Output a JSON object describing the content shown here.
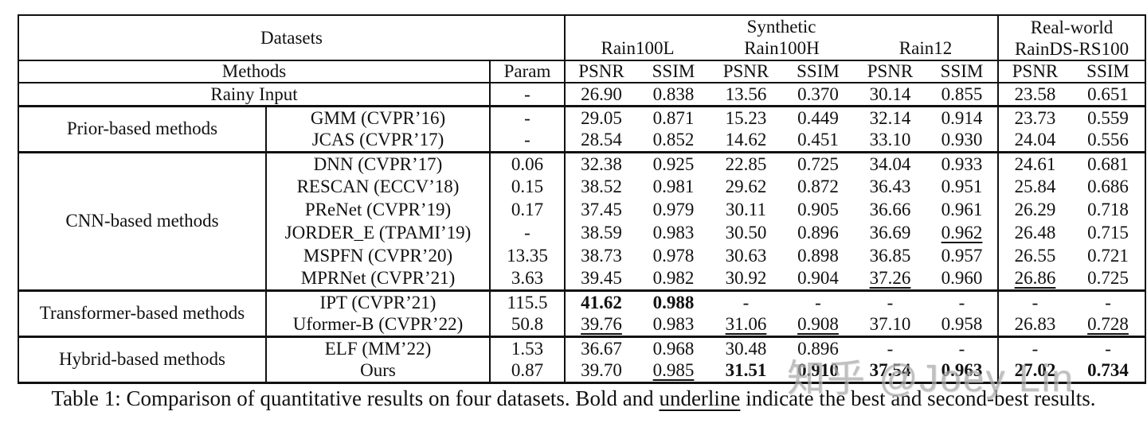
{
  "colors": {
    "text": "#111111",
    "rule": "#111111",
    "watermark": "#a9a9a9",
    "background": "#ffffff"
  },
  "table": {
    "header": {
      "datasets_label": "Datasets",
      "methods_label": "Methods",
      "param_label": "Param",
      "synthetic_label": "Synthetic",
      "realworld_line1": "Real-world",
      "realworld_line2": "RainDS-RS100",
      "dataset_names": [
        "Rain100L",
        "Rain100H",
        "Rain12"
      ],
      "metrics": [
        "PSNR",
        "SSIM",
        "PSNR",
        "SSIM",
        "PSNR",
        "SSIM",
        "PSNR",
        "SSIM"
      ]
    },
    "value_style_legend": {
      "n": "normal",
      "b": "bold (best)",
      "u": "underline (second-best)"
    },
    "rows": [
      {
        "group": null,
        "span_method": true,
        "method": "Rainy Input",
        "param": "-",
        "sep_after": "thick",
        "values": [
          [
            "26.90",
            "n"
          ],
          [
            "0.838",
            "n"
          ],
          [
            "13.56",
            "n"
          ],
          [
            "0.370",
            "n"
          ],
          [
            "30.14",
            "n"
          ],
          [
            "0.855",
            "n"
          ],
          [
            "23.58",
            "n"
          ],
          [
            "0.651",
            "n"
          ]
        ]
      },
      {
        "group": {
          "label": "Prior-based methods",
          "rowspan": 2
        },
        "method": "GMM (CVPR’16)",
        "param": "-",
        "values": [
          [
            "29.05",
            "n"
          ],
          [
            "0.871",
            "n"
          ],
          [
            "15.23",
            "n"
          ],
          [
            "0.449",
            "n"
          ],
          [
            "32.14",
            "n"
          ],
          [
            "0.914",
            "n"
          ],
          [
            "23.73",
            "n"
          ],
          [
            "0.559",
            "n"
          ]
        ]
      },
      {
        "method": "JCAS (CVPR’17)",
        "param": "-",
        "sep_after": "thick",
        "values": [
          [
            "28.54",
            "n"
          ],
          [
            "0.852",
            "n"
          ],
          [
            "14.62",
            "n"
          ],
          [
            "0.451",
            "n"
          ],
          [
            "33.10",
            "n"
          ],
          [
            "0.930",
            "n"
          ],
          [
            "24.04",
            "n"
          ],
          [
            "0.556",
            "n"
          ]
        ]
      },
      {
        "group": {
          "label": "CNN-based methods",
          "rowspan": 6
        },
        "method": "DNN (CVPR’17)",
        "param": "0.06",
        "values": [
          [
            "32.38",
            "n"
          ],
          [
            "0.925",
            "n"
          ],
          [
            "22.85",
            "n"
          ],
          [
            "0.725",
            "n"
          ],
          [
            "34.04",
            "n"
          ],
          [
            "0.933",
            "n"
          ],
          [
            "24.61",
            "n"
          ],
          [
            "0.681",
            "n"
          ]
        ]
      },
      {
        "method": "RESCAN (ECCV’18)",
        "param": "0.15",
        "values": [
          [
            "38.52",
            "n"
          ],
          [
            "0.981",
            "n"
          ],
          [
            "29.62",
            "n"
          ],
          [
            "0.872",
            "n"
          ],
          [
            "36.43",
            "n"
          ],
          [
            "0.951",
            "n"
          ],
          [
            "25.84",
            "n"
          ],
          [
            "0.686",
            "n"
          ]
        ]
      },
      {
        "method": "PReNet (CVPR’19)",
        "param": "0.17",
        "values": [
          [
            "37.45",
            "n"
          ],
          [
            "0.979",
            "n"
          ],
          [
            "30.11",
            "n"
          ],
          [
            "0.905",
            "n"
          ],
          [
            "36.66",
            "n"
          ],
          [
            "0.961",
            "n"
          ],
          [
            "26.29",
            "n"
          ],
          [
            "0.718",
            "n"
          ]
        ]
      },
      {
        "method": "JORDER_E (TPAMI’19)",
        "param": "-",
        "values": [
          [
            "38.59",
            "n"
          ],
          [
            "0.983",
            "n"
          ],
          [
            "30.50",
            "n"
          ],
          [
            "0.896",
            "n"
          ],
          [
            "36.69",
            "n"
          ],
          [
            "0.962",
            "u"
          ],
          [
            "26.48",
            "n"
          ],
          [
            "0.715",
            "n"
          ]
        ]
      },
      {
        "method": "MSPFN (CVPR’20)",
        "param": "13.35",
        "values": [
          [
            "38.73",
            "n"
          ],
          [
            "0.978",
            "n"
          ],
          [
            "30.63",
            "n"
          ],
          [
            "0.898",
            "n"
          ],
          [
            "36.85",
            "n"
          ],
          [
            "0.957",
            "n"
          ],
          [
            "26.55",
            "n"
          ],
          [
            "0.721",
            "n"
          ]
        ]
      },
      {
        "method": "MPRNet (CVPR’21)",
        "param": "3.63",
        "sep_after": "thick",
        "values": [
          [
            "39.45",
            "n"
          ],
          [
            "0.982",
            "n"
          ],
          [
            "30.92",
            "n"
          ],
          [
            "0.904",
            "n"
          ],
          [
            "37.26",
            "u"
          ],
          [
            "0.960",
            "n"
          ],
          [
            "26.86",
            "u"
          ],
          [
            "0.725",
            "n"
          ]
        ]
      },
      {
        "group": {
          "label": "Transformer-based methods",
          "rowspan": 2
        },
        "method": "IPT (CVPR’21)",
        "param": "115.5",
        "values": [
          [
            "41.62",
            "b"
          ],
          [
            "0.988",
            "b"
          ],
          [
            "-",
            "n"
          ],
          [
            "-",
            "n"
          ],
          [
            "-",
            "n"
          ],
          [
            "-",
            "n"
          ],
          [
            "-",
            "n"
          ],
          [
            "-",
            "n"
          ]
        ]
      },
      {
        "method": "Uformer-B (CVPR’22)",
        "param": "50.8",
        "sep_after": "thick",
        "values": [
          [
            "39.76",
            "u"
          ],
          [
            "0.983",
            "n"
          ],
          [
            "31.06",
            "u"
          ],
          [
            "0.908",
            "u"
          ],
          [
            "37.10",
            "n"
          ],
          [
            "0.958",
            "n"
          ],
          [
            "26.83",
            "n"
          ],
          [
            "0.728",
            "u"
          ]
        ]
      },
      {
        "group": {
          "label": "Hybrid-based methods",
          "rowspan": 2
        },
        "method": "ELF (MM’22)",
        "param": "1.53",
        "values": [
          [
            "36.67",
            "n"
          ],
          [
            "0.968",
            "n"
          ],
          [
            "30.48",
            "n"
          ],
          [
            "0.896",
            "n"
          ],
          [
            "-",
            "n"
          ],
          [
            "-",
            "n"
          ],
          [
            "-",
            "n"
          ],
          [
            "-",
            "n"
          ]
        ]
      },
      {
        "method": "Ours",
        "param": "0.87",
        "values": [
          [
            "39.70",
            "n"
          ],
          [
            "0.985",
            "u"
          ],
          [
            "31.51",
            "b"
          ],
          [
            "0.910",
            "b"
          ],
          [
            "37.54",
            "b"
          ],
          [
            "0.963",
            "b"
          ],
          [
            "27.02",
            "b"
          ],
          [
            "0.734",
            "b"
          ]
        ]
      }
    ]
  },
  "caption": {
    "before": "Table 1: Comparison of quantitative results on four datasets. Bold and ",
    "underlined_word": "underline",
    "after": " indicate the best and second-best results."
  },
  "watermark": "知乎 @Joey Lin"
}
